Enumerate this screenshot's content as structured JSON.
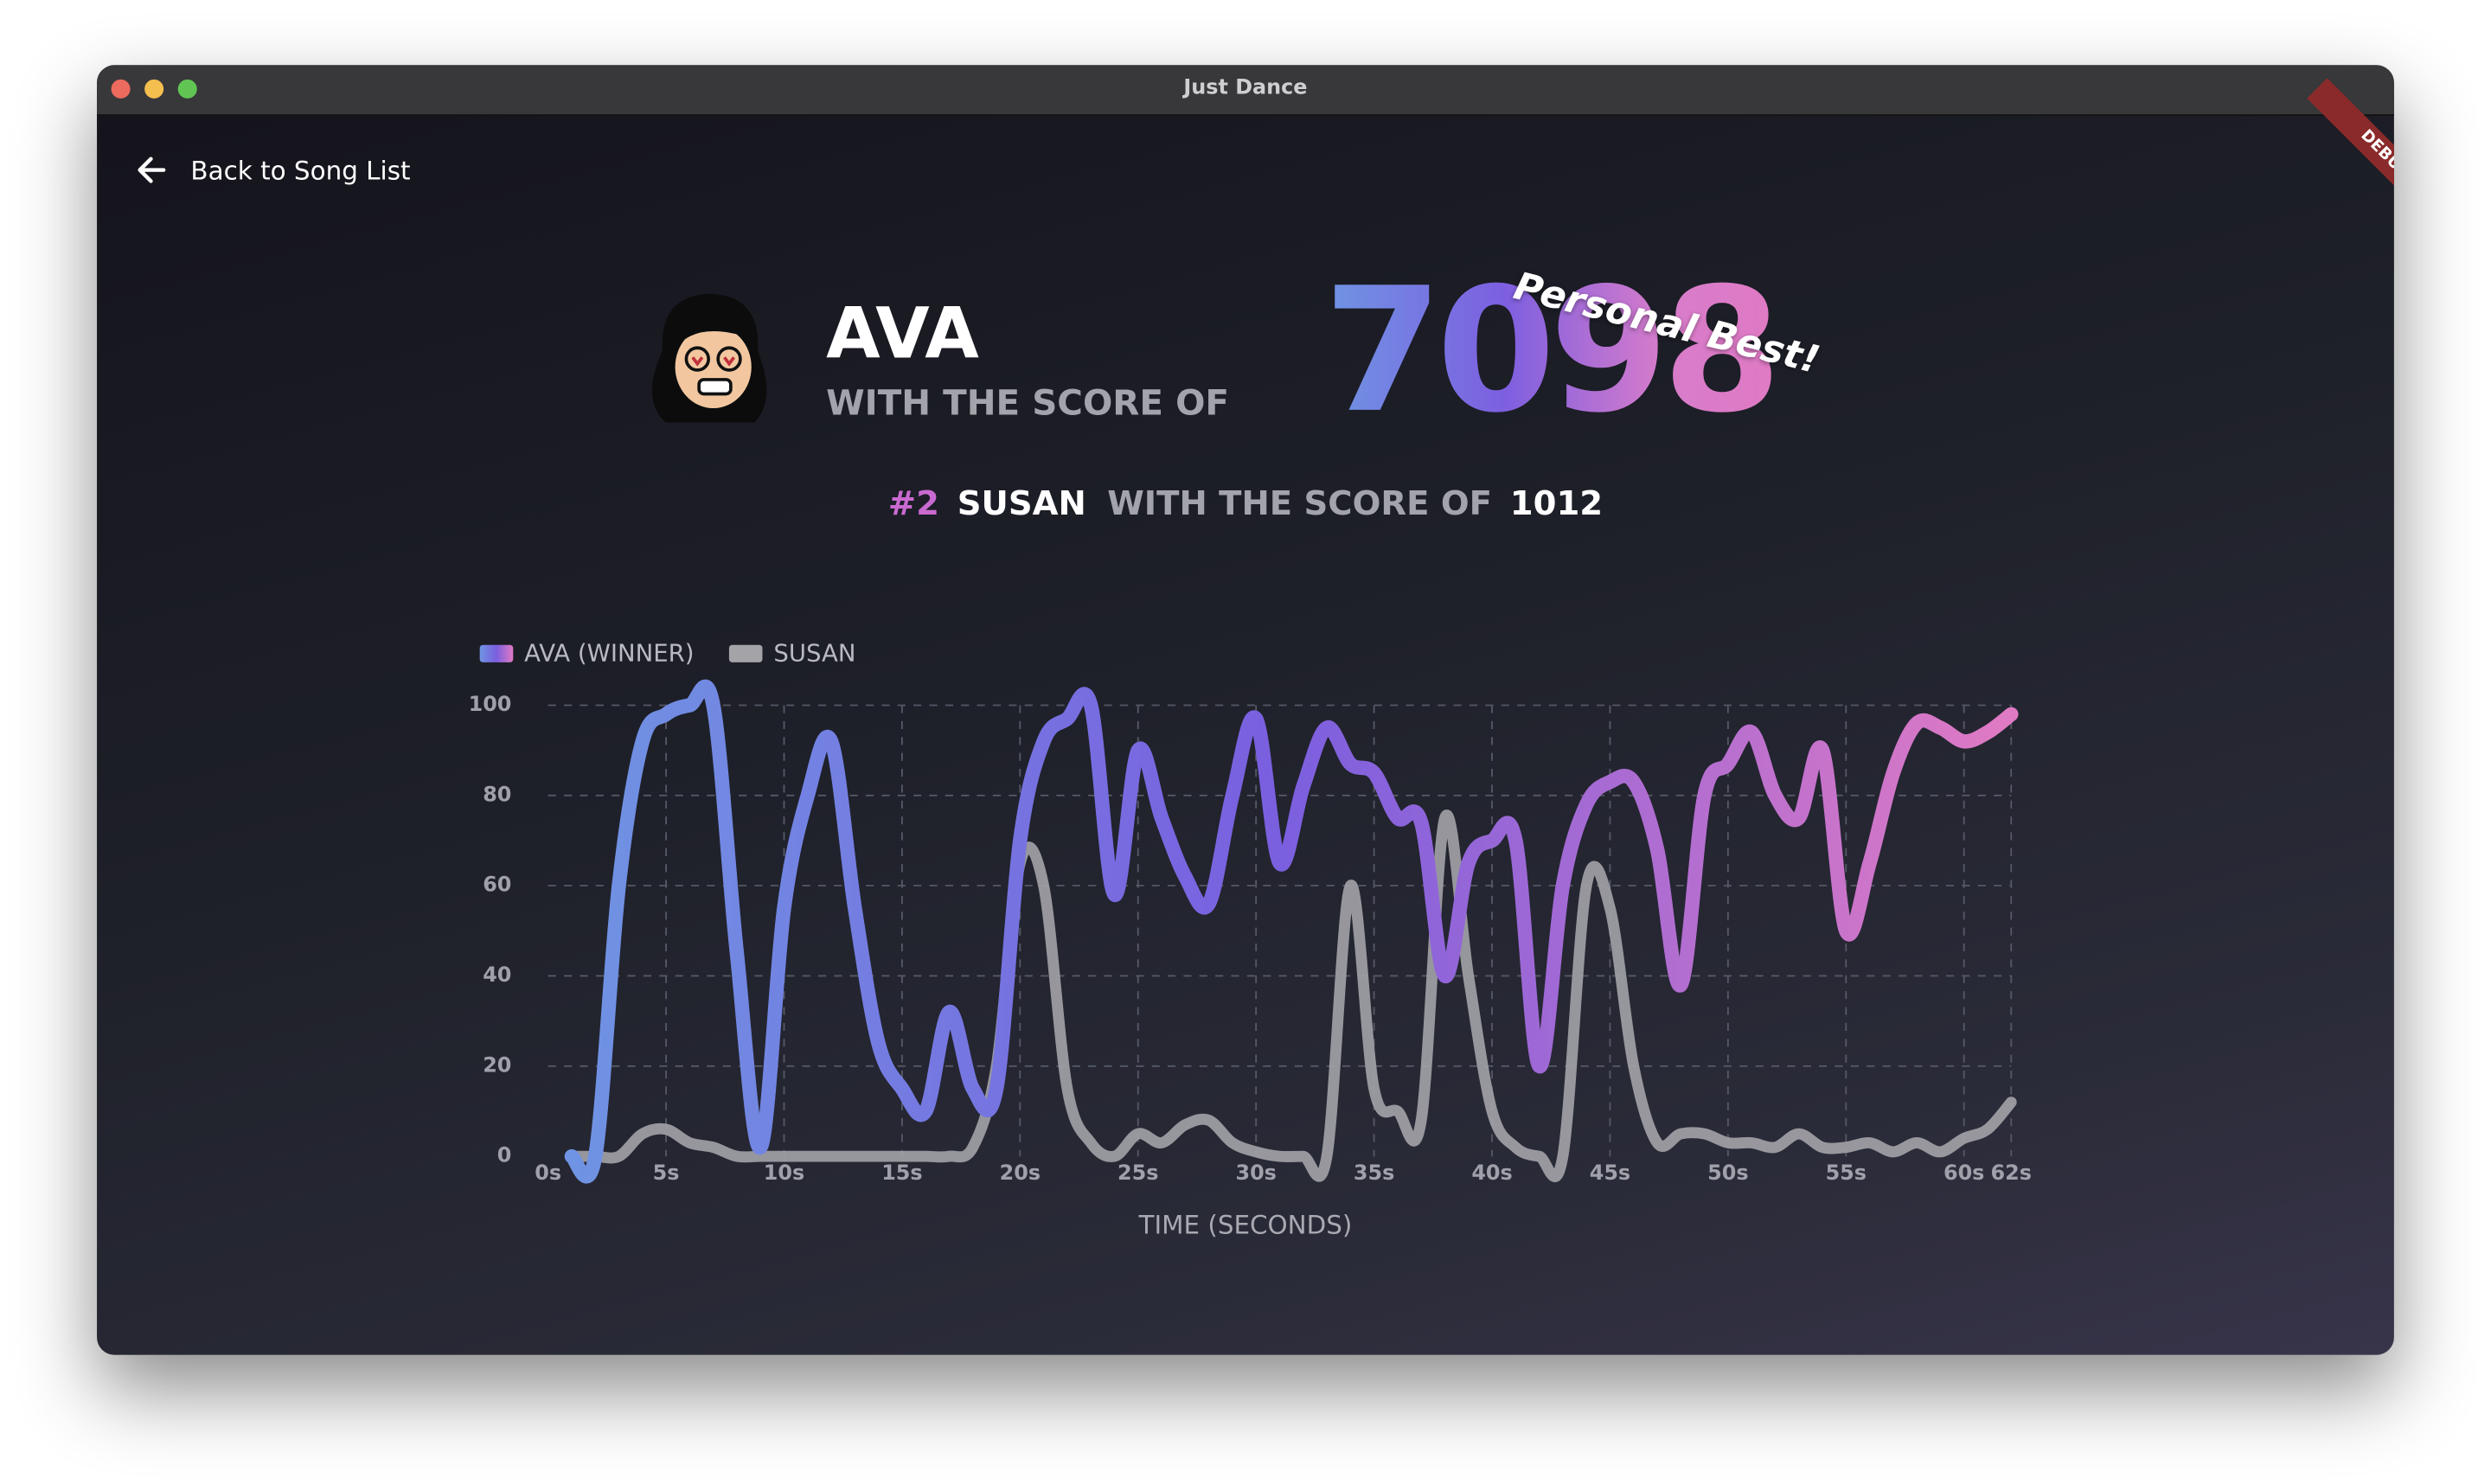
{
  "window": {
    "title": "Just Dance"
  },
  "nav": {
    "back": "Back to Song List"
  },
  "debug_banner": "DEBUG",
  "winner": {
    "name": "AVA",
    "subtitle": "WITH THE SCORE OF",
    "score": 7098,
    "badge": "Personal Best!"
  },
  "runner_up": {
    "rank": "#2",
    "name": "SUSAN",
    "subtitle": "WITH THE SCORE OF",
    "score": 1012
  },
  "chart_data": {
    "type": "line",
    "x_label": "TIME (SECONDS)",
    "x": [
      1,
      2,
      3,
      4,
      5,
      6,
      7,
      8,
      9,
      10,
      11,
      12,
      13,
      14,
      15,
      16,
      17,
      18,
      19,
      20,
      21,
      22,
      23,
      24,
      25,
      26,
      27,
      28,
      29,
      30,
      31,
      32,
      33,
      34,
      35,
      36,
      37,
      38,
      39,
      40,
      41,
      42,
      43,
      44,
      45,
      46,
      47,
      48,
      49,
      50,
      51,
      52,
      53,
      54,
      55,
      56,
      57,
      58,
      59,
      60,
      61,
      62
    ],
    "series": [
      {
        "name": "AVA (WINNER)",
        "gradient": [
          "#6f95e3",
          "#7a5fdf",
          "#e07ac4"
        ],
        "values": [
          0,
          0,
          60,
          92,
          98,
          100,
          100,
          45,
          2,
          55,
          80,
          92,
          55,
          25,
          15,
          10,
          32,
          15,
          15,
          70,
          92,
          97,
          100,
          58,
          90,
          75,
          62,
          56,
          80,
          97,
          65,
          82,
          95,
          87,
          85,
          75,
          74,
          40,
          65,
          70,
          70,
          20,
          60,
          78,
          83,
          83,
          68,
          38,
          80,
          87,
          94,
          80,
          75,
          90,
          50,
          65,
          85,
          96,
          95,
          92,
          94,
          98
        ]
      },
      {
        "name": "SUSAN",
        "color": "#a3a3a8",
        "values": [
          0,
          0,
          0,
          5,
          6,
          3,
          2,
          0,
          0,
          0,
          0,
          0,
          0,
          0,
          0,
          0,
          0,
          2,
          20,
          65,
          60,
          15,
          3,
          0,
          5,
          3,
          7,
          8,
          3,
          1,
          0,
          0,
          0,
          60,
          15,
          10,
          8,
          75,
          40,
          10,
          2,
          0,
          0,
          60,
          55,
          20,
          3,
          5,
          5,
          3,
          3,
          2,
          5,
          2,
          2,
          3,
          1,
          3,
          1,
          4,
          6,
          12
        ]
      }
    ],
    "xlim": [
      0,
      62
    ],
    "xticks": [
      {
        "value": 0,
        "label": "0s"
      },
      {
        "value": 5,
        "label": "5s"
      },
      {
        "value": 10,
        "label": "10s"
      },
      {
        "value": 15,
        "label": "15s"
      },
      {
        "value": 20,
        "label": "20s"
      },
      {
        "value": 25,
        "label": "25s"
      },
      {
        "value": 30,
        "label": "30s"
      },
      {
        "value": 35,
        "label": "35s"
      },
      {
        "value": 40,
        "label": "40s"
      },
      {
        "value": 45,
        "label": "45s"
      },
      {
        "value": 50,
        "label": "50s"
      },
      {
        "value": 55,
        "label": "55s"
      },
      {
        "value": 60,
        "label": "60s"
      },
      {
        "value": 62,
        "label": "62s"
      }
    ],
    "ylim": [
      0,
      100
    ],
    "yticks": [
      0,
      20,
      40,
      60,
      80,
      100
    ],
    "grid": true,
    "legend": "top-left"
  }
}
